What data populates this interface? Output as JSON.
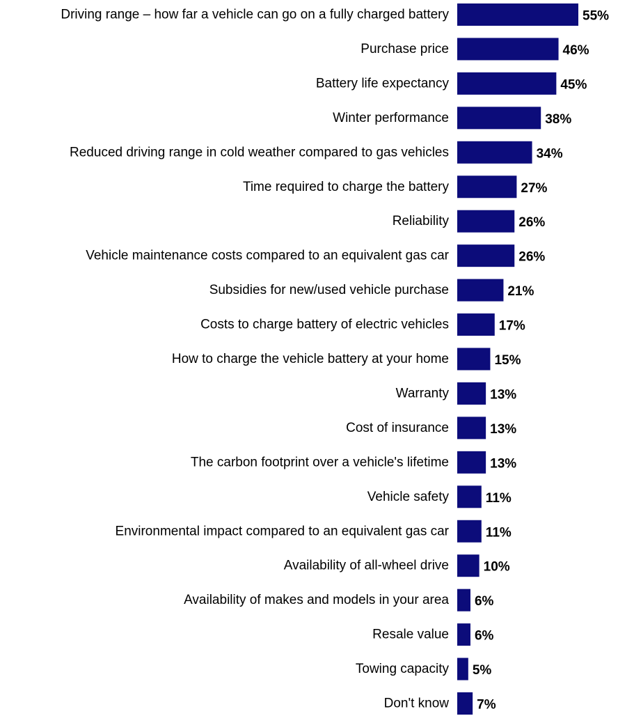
{
  "chart_data": {
    "type": "bar",
    "orientation": "horizontal",
    "title": "",
    "xlabel": "",
    "ylabel": "",
    "value_suffix": "%",
    "xlim": [
      0,
      55
    ],
    "grid": false,
    "legend": "none",
    "bar_color": "#0C0C7A",
    "categories": [
      "Driving range – how far a vehicle can go on a fully charged battery",
      "Purchase price",
      "Battery life expectancy",
      "Winter performance",
      "Reduced driving range in cold weather compared to gas vehicles",
      "Time required to charge the battery",
      "Reliability",
      "Vehicle maintenance costs compared to an equivalent gas car",
      "Subsidies for new/used vehicle purchase",
      "Costs to charge battery of electric vehicles",
      "How to charge the vehicle battery at your home",
      "Warranty",
      "Cost of insurance",
      "The carbon footprint over a vehicle's lifetime",
      "Vehicle safety",
      "Environmental impact compared to an equivalent gas car",
      "Availability of all-wheel drive",
      "Availability of makes and models in your area",
      "Resale value",
      "Towing capacity",
      "Don't know"
    ],
    "values": [
      55,
      46,
      45,
      38,
      34,
      27,
      26,
      26,
      21,
      17,
      15,
      13,
      13,
      13,
      11,
      11,
      10,
      6,
      6,
      5,
      7
    ]
  }
}
